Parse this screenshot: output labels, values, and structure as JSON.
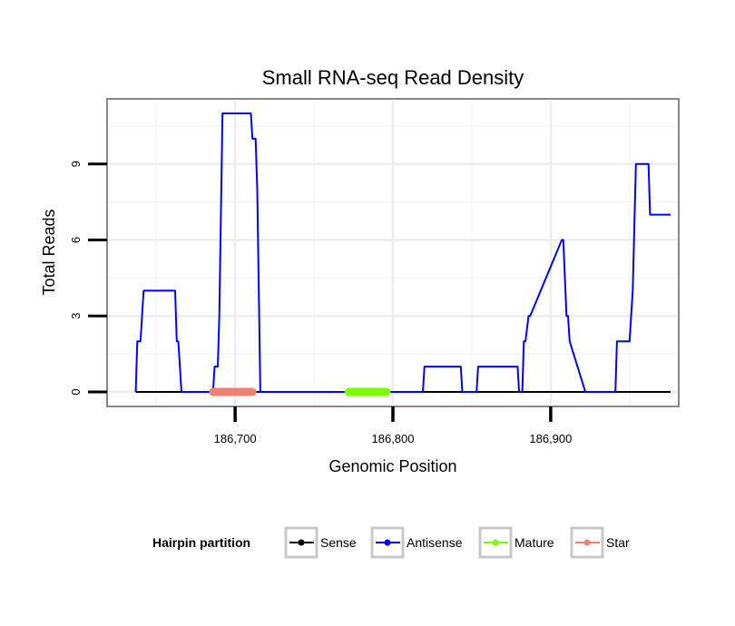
{
  "chart_data": {
    "type": "line",
    "title": "Small RNA-seq Read Density",
    "xlabel": "Genomic Position",
    "ylabel": "Total Reads",
    "xlim": [
      186620,
      186980
    ],
    "ylim": [
      -0.5,
      11.5
    ],
    "x_ticks": [
      186700,
      186800,
      186900
    ],
    "x_tick_labels": [
      "186,700",
      "186,800",
      "186,900"
    ],
    "y_ticks": [
      0,
      3,
      6,
      9
    ],
    "y_tick_labels": [
      "0",
      "3",
      "6",
      "9"
    ],
    "grid": true,
    "legend_position": "bottom",
    "legend": {
      "title": "Hairpin partition",
      "entries": [
        {
          "label": "Sense",
          "color": "#000000"
        },
        {
          "label": "Antisense",
          "color": "#0000FF"
        },
        {
          "label": "Mature",
          "color": "#7CFC00"
        },
        {
          "label": "Star",
          "color": "#F08070"
        }
      ]
    },
    "series": [
      {
        "name": "Sense",
        "color": "#000000",
        "x": [
          186637,
          186976
        ],
        "y": [
          0,
          0
        ]
      },
      {
        "name": "Antisense",
        "color": "#0000FF",
        "x": [
          186637,
          186638,
          186640,
          186642,
          186644,
          186662,
          186663,
          186664,
          186666,
          186686,
          186687,
          186689,
          186690,
          186692,
          186693,
          186710,
          186711,
          186713,
          186714,
          186716,
          186740,
          186819,
          186820,
          186843,
          186844,
          186853,
          186854,
          186879,
          186880,
          186882,
          186883,
          186884,
          186886,
          186887,
          186907,
          186908,
          186910,
          186911,
          186912,
          186922,
          186941,
          186942,
          186944,
          186950,
          186952,
          186954,
          186959,
          186960,
          186962,
          186963,
          186976
        ],
        "y": [
          0,
          2,
          2,
          4,
          4,
          4,
          2,
          2,
          0,
          0,
          1,
          1,
          3,
          11,
          11,
          11,
          10,
          10,
          8,
          0,
          0,
          0,
          1,
          1,
          0,
          0,
          1,
          1,
          0,
          0,
          2,
          2,
          3,
          3,
          6,
          6,
          3,
          3,
          2,
          0,
          0,
          2,
          2,
          2,
          4,
          9,
          9,
          9,
          9,
          7,
          7
        ]
      },
      {
        "name": "Mature",
        "color": "#7CFC00",
        "x": [
          186772,
          186796
        ],
        "y": [
          0,
          0
        ]
      },
      {
        "name": "Star",
        "color": "#F08070",
        "x": [
          186686,
          186711
        ],
        "y": [
          0,
          0
        ]
      }
    ]
  }
}
